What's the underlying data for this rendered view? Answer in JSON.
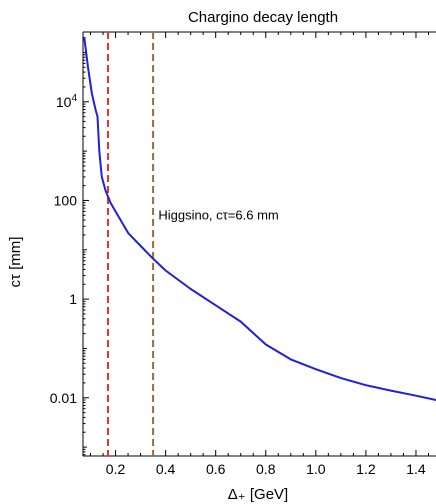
{
  "chart_data": {
    "type": "line",
    "title": "Chargino decay length",
    "xlabel": "Δ₊ [GeV]",
    "ylabel": "cτ [mm]",
    "xlim": [
      0.07,
      1.48
    ],
    "ylim": [
      0.00066,
      260000
    ],
    "yscale": "log",
    "grid": false,
    "x_ticks": [
      {
        "value": 0.2,
        "label": "0.2"
      },
      {
        "value": 0.4,
        "label": "0.4"
      },
      {
        "value": 0.6,
        "label": "0.6"
      },
      {
        "value": 0.8,
        "label": "0.8"
      },
      {
        "value": 1.0,
        "label": "1.0"
      },
      {
        "value": 1.2,
        "label": "1.2"
      },
      {
        "value": 1.4,
        "label": "1.4"
      }
    ],
    "y_ticks": [
      {
        "value": 0.01,
        "label": "0.01"
      },
      {
        "value": 1,
        "label": "1"
      },
      {
        "value": 100,
        "label": "100"
      },
      {
        "value": 10000,
        "label": "10",
        "sup": "4"
      }
    ],
    "series": [
      {
        "color": "#1f1fe0",
        "x": [
          0.075,
          0.09,
          0.105,
          0.12,
          0.128,
          0.135,
          0.145,
          0.16,
          0.18,
          0.2,
          0.25,
          0.3,
          0.35,
          0.4,
          0.5,
          0.6,
          0.7,
          0.8,
          0.9,
          1.0,
          1.1,
          1.2,
          1.3,
          1.4,
          1.48
        ],
        "y": [
          200000,
          50000,
          15000,
          7000,
          5000,
          1000,
          300,
          160,
          90,
          60,
          22,
          12,
          6.6,
          3.8,
          1.6,
          0.75,
          0.35,
          0.12,
          0.06,
          0.038,
          0.025,
          0.018,
          0.014,
          0.011,
          0.009
        ]
      }
    ],
    "vlines": [
      {
        "x": 0.17,
        "color": "#e8312b",
        "style": "dashed"
      },
      {
        "x": 0.35,
        "color": "#a0673a",
        "style": "dashed"
      }
    ],
    "annotations": [
      {
        "text": "Higgsino, cτ=6.6 mm",
        "x": 0.355,
        "y": 50
      }
    ]
  }
}
